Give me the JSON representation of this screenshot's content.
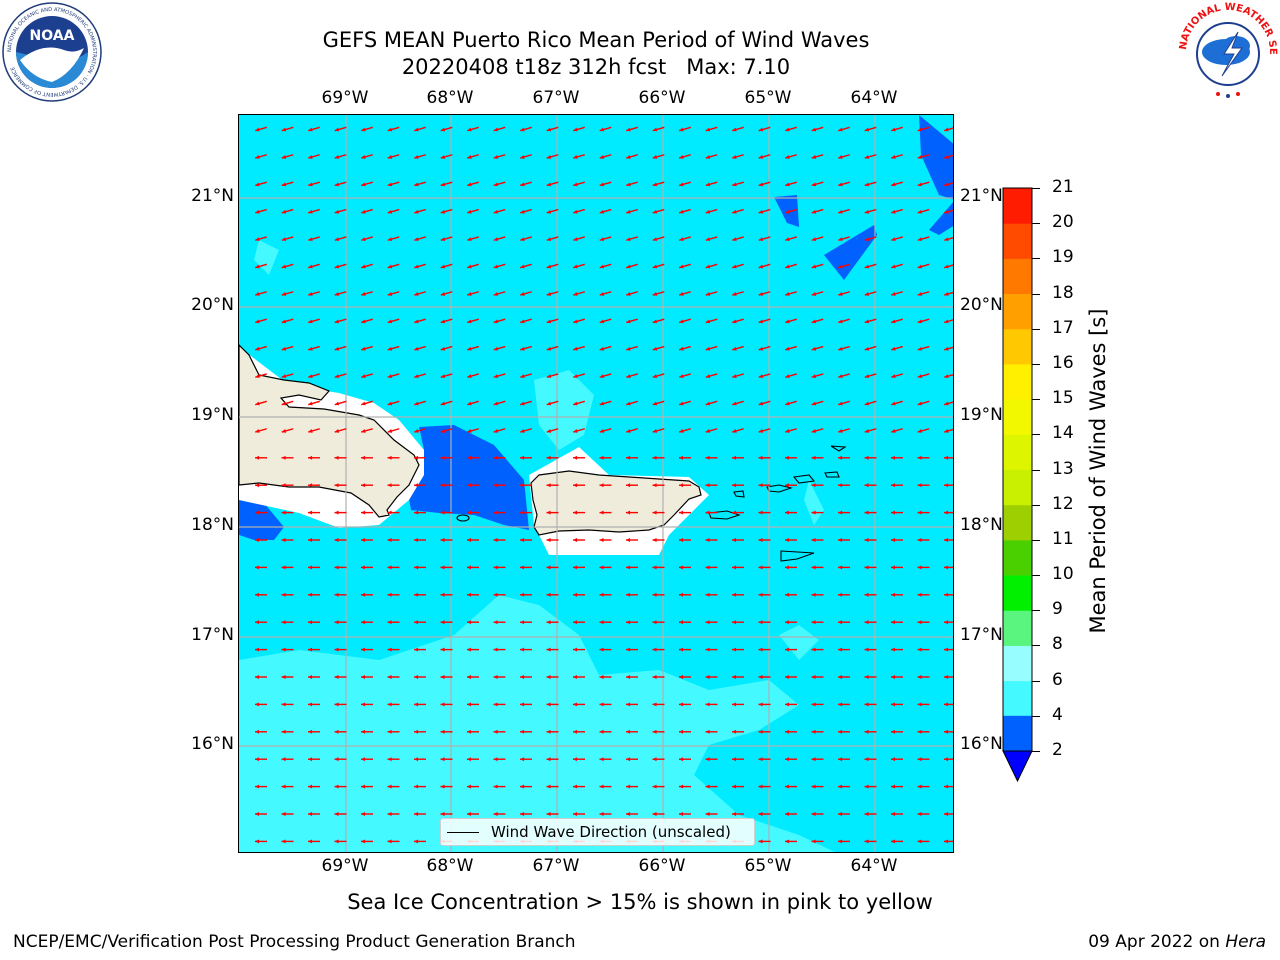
{
  "title": {
    "line1": "GEFS MEAN Puerto Rico Mean Period of Wind Waves",
    "line2": "20220408 t18z 312h fcst   Max: 7.10"
  },
  "map": {
    "lon_labels": [
      "69°W",
      "68°W",
      "67°W",
      "66°W",
      "65°W",
      "64°W"
    ],
    "lat_labels": [
      "21°N",
      "20°N",
      "19°N",
      "18°N",
      "17°N",
      "16°N"
    ],
    "legend_label": "Wind Wave Direction (unscaled)",
    "arrow_color": "#ff0000",
    "land_color": "#efecdc"
  },
  "colorbar": {
    "title": "Mean Period of Wind Waves [s]",
    "tick_labels": [
      "2",
      "4",
      "6",
      "8",
      "9",
      "10",
      "11",
      "12",
      "13",
      "14",
      "15",
      "16",
      "17",
      "18",
      "19",
      "20",
      "21"
    ],
    "colors": [
      "#0061ff",
      "#00ebff",
      "#44f9ff",
      "#98fdff",
      "#59f57f",
      "#00f000",
      "#4ad000",
      "#9ecf00",
      "#c8f000",
      "#ddf600",
      "#f2f800",
      "#fff000",
      "#ffc800",
      "#ffa000",
      "#ff7800",
      "#ff4b00",
      "#ff1c00"
    ],
    "under_color": "#0000ff"
  },
  "note": "Sea Ice Concentration > 15% is shown in pink to yellow",
  "footer": {
    "left": "NCEP/EMC/Verification Post Processing Product Generation Branch",
    "date": "09 Apr 2022 on ",
    "host": "Hera"
  },
  "logos": {
    "noaa": "NOAA",
    "noaa_ring": "NATIONAL OCEANIC AND ATMOSPHERIC ADMINISTRATION · U.S. DEPARTMENT OF COMMERCE",
    "nws_ring": "NATIONAL WEATHER SERVICE"
  }
}
